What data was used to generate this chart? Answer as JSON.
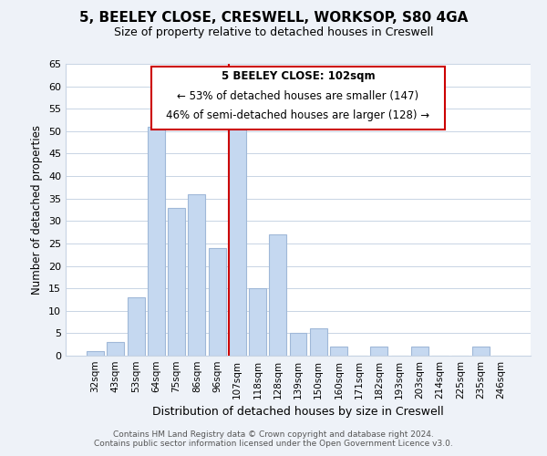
{
  "title": "5, BEELEY CLOSE, CRESWELL, WORKSOP, S80 4GA",
  "subtitle": "Size of property relative to detached houses in Creswell",
  "xlabel": "Distribution of detached houses by size in Creswell",
  "ylabel": "Number of detached properties",
  "bar_labels": [
    "32sqm",
    "43sqm",
    "53sqm",
    "64sqm",
    "75sqm",
    "86sqm",
    "96sqm",
    "107sqm",
    "118sqm",
    "128sqm",
    "139sqm",
    "150sqm",
    "160sqm",
    "171sqm",
    "182sqm",
    "193sqm",
    "203sqm",
    "214sqm",
    "225sqm",
    "235sqm",
    "246sqm"
  ],
  "bar_values": [
    1,
    3,
    13,
    51,
    33,
    36,
    24,
    54,
    15,
    27,
    5,
    6,
    2,
    0,
    2,
    0,
    2,
    0,
    0,
    2,
    0
  ],
  "bar_color": "#c5d8f0",
  "bar_edge_color": "#a0b8d8",
  "highlight_index": 7,
  "highlight_line_color": "#cc0000",
  "ylim": [
    0,
    65
  ],
  "yticks": [
    0,
    5,
    10,
    15,
    20,
    25,
    30,
    35,
    40,
    45,
    50,
    55,
    60,
    65
  ],
  "annotation_line1": "5 BEELEY CLOSE: 102sqm",
  "annotation_line2": "← 53% of detached houses are smaller (147)",
  "annotation_line3": "46% of semi-detached houses are larger (128) →",
  "footer_line1": "Contains HM Land Registry data © Crown copyright and database right 2024.",
  "footer_line2": "Contains public sector information licensed under the Open Government Licence v3.0.",
  "background_color": "#eef2f8",
  "plot_bg_color": "#ffffff"
}
